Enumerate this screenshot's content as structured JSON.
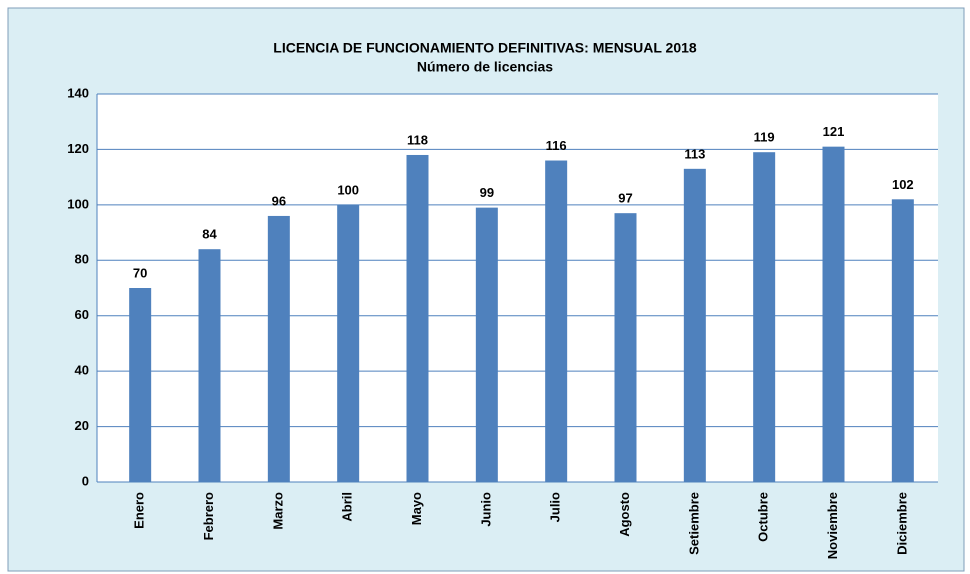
{
  "chart_data": {
    "type": "bar",
    "title": "LICENCIA  DE FUNCIONAMIENTO  DEFINITIVAS: MENSUAL  2018",
    "subtitle": "Número de licencias",
    "categories": [
      "Enero",
      "Febrero",
      "Marzo",
      "Abril",
      "Mayo",
      "Junio",
      "Julio",
      "Agosto",
      "Setiembre",
      "Octubre",
      "Noviembre",
      "Diciembre"
    ],
    "values": [
      70,
      84,
      96,
      100,
      118,
      99,
      116,
      97,
      113,
      119,
      121,
      102
    ],
    "color": "#4f81bd",
    "ylim": [
      0,
      140
    ],
    "yticks": [
      0,
      20,
      40,
      60,
      80,
      100,
      120,
      140
    ],
    "grid": true
  }
}
